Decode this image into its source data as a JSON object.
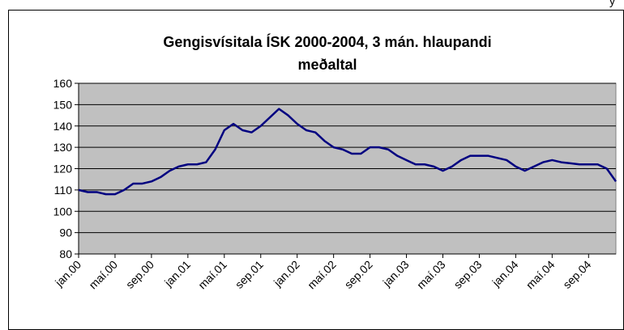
{
  "corner_text": "y",
  "chart_data": {
    "type": "line",
    "title": [
      "Gengisvísitala ÍSK 2000-2004, 3 mán. hlaupandi",
      "meðaltal"
    ],
    "categories": [
      "jan.00",
      null,
      null,
      null,
      "maí.00",
      null,
      null,
      null,
      "sep.00",
      null,
      null,
      null,
      "jan.01",
      null,
      null,
      null,
      "maí.01",
      null,
      null,
      null,
      "sep.01",
      null,
      null,
      null,
      "jan.02",
      null,
      null,
      null,
      "maí.02",
      null,
      null,
      null,
      "sep.02",
      null,
      null,
      null,
      "jan.03",
      null,
      null,
      null,
      "maí.03",
      null,
      null,
      null,
      "sep.03",
      null,
      null,
      null,
      "jan.04",
      null,
      null,
      null,
      "maí.04",
      null,
      null,
      null,
      "sep.04",
      null,
      null,
      null
    ],
    "series": [
      {
        "name": "Gengisvísitala",
        "color": "#000080",
        "values": [
          110,
          109,
          109,
          108,
          108,
          110,
          113,
          113,
          114,
          116,
          119,
          121,
          122,
          122,
          123,
          129,
          138,
          141,
          138,
          137,
          140,
          144,
          148,
          145,
          141,
          138,
          137,
          133,
          130,
          129,
          127,
          127,
          130,
          130,
          129,
          126,
          124,
          122,
          122,
          121,
          119,
          121,
          124,
          126,
          126,
          126,
          125,
          124,
          121,
          119,
          121,
          123,
          124,
          123,
          122.5,
          122,
          122,
          122,
          120,
          114
        ]
      }
    ],
    "ylim": [
      80,
      160
    ],
    "yticks": [
      80,
      90,
      100,
      110,
      120,
      130,
      140,
      150,
      160
    ],
    "grid": true,
    "plot_color": "#c0c0c0"
  }
}
